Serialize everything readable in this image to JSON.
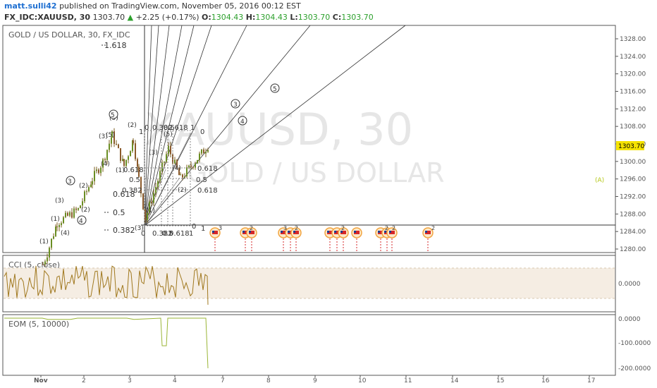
{
  "header": {
    "user": "matt.sulli42",
    "published": "published on TradingView.com, November 05, 2016 00:12 EST",
    "symbol": "FX_IDC:XAUUSD, 30",
    "last": "1303.70",
    "change_arrow": "▲",
    "change": "+2.25 (+0.17%)",
    "o_label": "O:",
    "o_value": "1304.43",
    "h_label": "H:",
    "h_value": "1304.43",
    "l_label": "L:",
    "l_value": "1303.70",
    "c_label": "C:",
    "c_value": "1303.70"
  },
  "main_pane": {
    "legend": "GOLD / US DOLLAR, 30, FX_IDC",
    "watermark_symbol": "XAUUSD, 30",
    "watermark_name": "GOLD / US DOLLAR",
    "last_price_tag": "1303.70",
    "y_ticks": [
      "1328.00",
      "1324.00",
      "1320.00",
      "1316.00",
      "1312.00",
      "1308.00",
      "1304.00",
      "1300.00",
      "1296.00",
      "1292.00",
      "1288.00",
      "1284.00",
      "1280.00"
    ],
    "fib_levels": [
      "1.618",
      "0.618",
      "0.5",
      "0.382",
      "0.382",
      "0.618",
      "0.5",
      "0.618",
      "0.382",
      "0.618"
    ],
    "wave_labels": [
      "(1)",
      "(2)",
      "(3)",
      "(4)",
      "(5)",
      "(1)",
      "(2)",
      "(3)",
      "(4)",
      "(5)",
      "3",
      "4",
      "5",
      "(A)"
    ],
    "fan_labels": [
      "3",
      "4",
      "5"
    ],
    "rect_labels": [
      "0",
      "1",
      "0",
      "0.382",
      "0.5",
      "0.618",
      "1",
      "0",
      "1",
      "0.382",
      "0.5",
      "0.618",
      "1",
      "0"
    ],
    "event_count_labels": [
      "3",
      "2",
      "2",
      "2",
      "2",
      "2",
      "2",
      "3"
    ]
  },
  "cci_pane": {
    "legend": "CCI (5, close)",
    "y_ticks": [
      "0.0000"
    ]
  },
  "eom_pane": {
    "legend": "EOM (5, 10000)",
    "y_ticks": [
      "0.0000",
      "-100.0000",
      "-200.0000"
    ]
  },
  "x_axis": {
    "ticks": [
      "Nov",
      "2",
      "3",
      "4",
      "7",
      "8",
      "9",
      "10",
      "11",
      "14",
      "15",
      "16",
      "17"
    ]
  },
  "colors": {
    "up": "#2ca02c",
    "down": "#d62728",
    "candle": "#8a6d1a",
    "cci_line": "#a0781e",
    "cci_band": "#f5ede3",
    "eom_line": "#9ab536",
    "price_tag_bg": "#f5e300",
    "wave_A": "#b5c81a"
  },
  "chart_data": {
    "type": "candlestick",
    "title": "GOLD / US DOLLAR, 30, FX_IDC",
    "x": [
      "Nov",
      "2",
      "3",
      "4",
      "7",
      "8",
      "9",
      "10",
      "11",
      "14",
      "15",
      "16",
      "17"
    ],
    "y_range": [
      1278,
      1332
    ],
    "last_price": 1303.7,
    "close_path": [
      {
        "x": "Nov",
        "y": 1276.5
      },
      {
        "x": "Nov",
        "y": 1279.0
      },
      {
        "x": "Nov",
        "y": 1286.0
      },
      {
        "x": "2",
        "y": 1289.0
      },
      {
        "x": "2",
        "y": 1296.0
      },
      {
        "x": "2",
        "y": 1300.0
      },
      {
        "x": "2",
        "y": 1306.0
      },
      {
        "x": "3",
        "y": 1299.0
      },
      {
        "x": "3",
        "y": 1305.0
      },
      {
        "x": "3",
        "y": 1296.0
      },
      {
        "x": "3",
        "y": 1287.0
      },
      {
        "x": "4",
        "y": 1303.0
      },
      {
        "x": "4",
        "y": 1296.0
      },
      {
        "x": "4",
        "y": 1304.0
      }
    ],
    "fib_levels": [
      1.618,
      0.618,
      0.5,
      0.382
    ],
    "cci": {
      "name": "CCI (5, close)",
      "band": [
        100,
        -100
      ],
      "zero": 0
    },
    "eom": {
      "name": "EOM (5, 10000)",
      "ylim": [
        -200,
        0
      ],
      "values": [
        0,
        0,
        -5,
        -5,
        0,
        0,
        -5,
        0,
        -110,
        -110,
        0,
        0,
        0,
        -200
      ]
    }
  }
}
